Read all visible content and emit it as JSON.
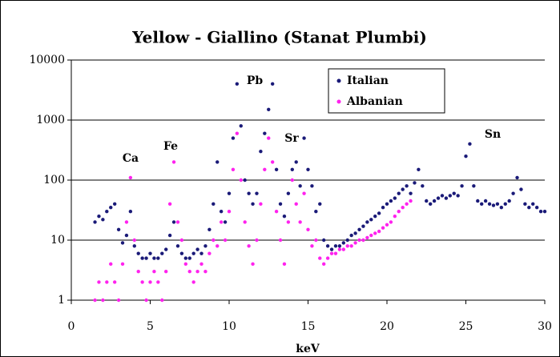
{
  "chart_data": {
    "type": "scatter",
    "title": "Yellow - Giallino (Stanat Plumbi)",
    "x_label": "keV",
    "xlim": [
      0,
      30
    ],
    "xticks": [
      0,
      5,
      10,
      15,
      20,
      25,
      30
    ],
    "ylim": [
      1,
      10000
    ],
    "yticks": [
      1,
      10,
      100,
      1000,
      10000
    ],
    "log_y": true,
    "grid": true,
    "legend": "upper right",
    "annotations": [
      "Ca",
      "Fe",
      "Pb",
      "Sr",
      "Sn"
    ],
    "series": [
      {
        "name": "Italian",
        "color": "#1a1a78",
        "x": [
          1.5,
          1.75,
          2,
          2.25,
          2.5,
          2.75,
          3,
          3.25,
          3.5,
          3.75,
          4,
          4.25,
          4.5,
          4.75,
          5,
          5.25,
          5.5,
          5.75,
          6,
          6.25,
          6.5,
          6.75,
          7,
          7.25,
          7.5,
          7.75,
          8,
          8.25,
          8.5,
          8.75,
          9,
          9.25,
          9.5,
          9.75,
          10,
          10.25,
          10.5,
          10.75,
          11,
          11.25,
          11.5,
          11.75,
          12,
          12.25,
          12.5,
          12.75,
          13,
          13.25,
          13.5,
          13.75,
          14,
          14.25,
          14.5,
          14.75,
          15,
          15.25,
          15.5,
          15.75,
          16,
          16.25,
          16.5,
          16.75,
          17,
          17.25,
          17.5,
          17.75,
          18,
          18.25,
          18.5,
          18.75,
          19,
          19.25,
          19.5,
          19.75,
          20,
          20.25,
          20.5,
          20.75,
          21,
          21.25,
          21.5,
          21.75,
          22,
          22.25,
          22.5,
          22.75,
          23,
          23.25,
          23.5,
          23.75,
          24,
          24.25,
          24.5,
          24.75,
          25,
          25.25,
          25.5,
          25.75,
          26,
          26.25,
          26.5,
          26.75,
          27,
          27.25,
          27.5,
          27.75,
          28,
          28.25,
          28.5,
          28.75,
          29,
          29.25,
          29.5,
          29.75,
          30
        ],
        "values": [
          20,
          25,
          22,
          30,
          35,
          40,
          15,
          9,
          12,
          30,
          8,
          6,
          5,
          5,
          6,
          5,
          5,
          6,
          7,
          12,
          20,
          8,
          6,
          5,
          5,
          6,
          7,
          6,
          8,
          15,
          40,
          200,
          30,
          20,
          60,
          500,
          4000,
          800,
          100,
          60,
          40,
          60,
          300,
          600,
          1500,
          4000,
          150,
          40,
          25,
          60,
          150,
          200,
          80,
          500,
          150,
          80,
          30,
          40,
          10,
          8,
          7,
          8,
          8,
          9,
          10,
          12,
          13,
          15,
          17,
          20,
          22,
          25,
          28,
          35,
          40,
          45,
          50,
          60,
          70,
          80,
          60,
          90,
          150,
          80,
          45,
          40,
          45,
          50,
          55,
          50,
          55,
          60,
          55,
          80,
          250,
          400,
          80,
          45,
          40,
          45,
          40,
          38,
          40,
          35,
          40,
          45,
          60,
          110,
          70,
          40,
          35,
          40,
          35,
          30,
          30
        ]
      },
      {
        "name": "Albanian",
        "color": "#ff22ee",
        "x": [
          1.5,
          1.75,
          2,
          2.25,
          2.5,
          2.75,
          3,
          3.25,
          3.5,
          3.75,
          4,
          4.25,
          4.5,
          4.75,
          5,
          5.25,
          5.5,
          5.75,
          6,
          6.25,
          6.5,
          6.75,
          7,
          7.25,
          7.5,
          7.75,
          8,
          8.25,
          8.5,
          8.75,
          9,
          9.25,
          9.5,
          9.75,
          10,
          10.25,
          10.5,
          10.75,
          11,
          11.25,
          11.5,
          11.75,
          12,
          12.25,
          12.5,
          12.75,
          13,
          13.25,
          13.5,
          13.75,
          14,
          14.25,
          14.5,
          14.75,
          15,
          15.25,
          15.5,
          15.75,
          16,
          16.25,
          16.5,
          16.75,
          17,
          17.25,
          17.5,
          17.75,
          18,
          18.25,
          18.5,
          18.75,
          19,
          19.25,
          19.5,
          19.75,
          20,
          20.25,
          20.5,
          20.75,
          21,
          21.25,
          21.5
        ],
        "values": [
          1,
          2,
          1,
          2,
          4,
          2,
          1,
          4,
          20,
          110,
          10,
          3,
          2,
          1,
          2,
          3,
          2,
          1,
          3,
          40,
          200,
          20,
          10,
          4,
          3,
          2,
          3,
          4,
          3,
          6,
          10,
          8,
          20,
          10,
          30,
          150,
          600,
          100,
          20,
          8,
          4,
          10,
          40,
          150,
          500,
          200,
          30,
          10,
          4,
          20,
          100,
          40,
          20,
          60,
          15,
          8,
          10,
          5,
          4,
          5,
          6,
          6,
          7,
          7,
          8,
          8,
          9,
          10,
          10,
          11,
          12,
          13,
          14,
          16,
          18,
          20,
          25,
          30,
          35,
          40,
          45
        ]
      }
    ]
  }
}
